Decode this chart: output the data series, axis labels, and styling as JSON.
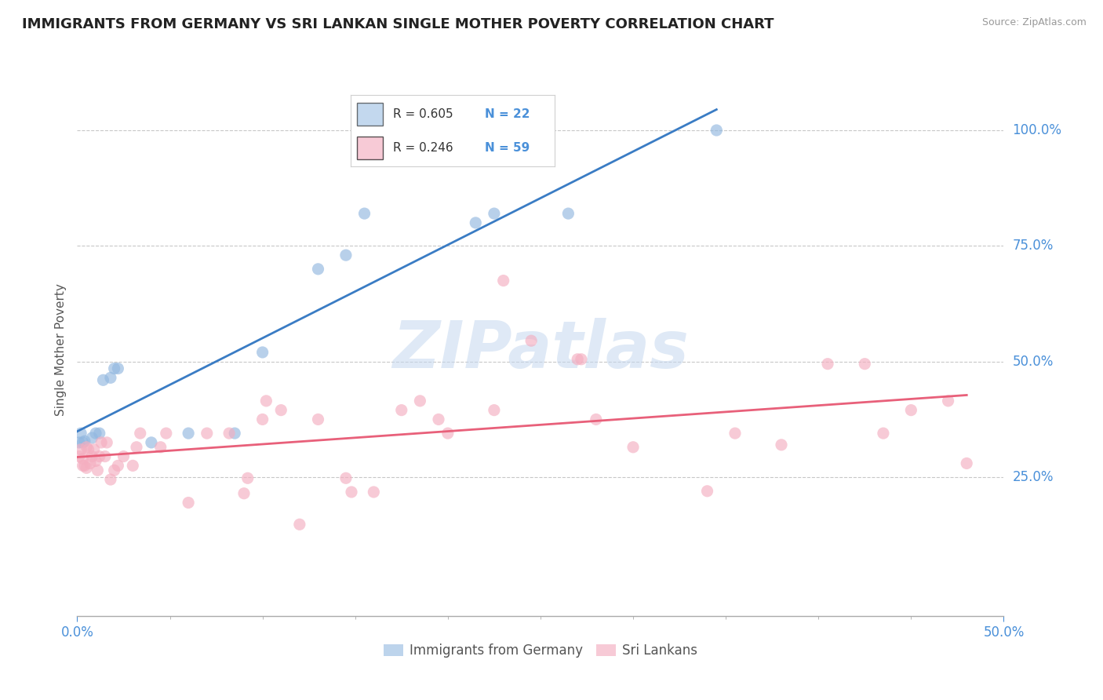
{
  "title": "IMMIGRANTS FROM GERMANY VS SRI LANKAN SINGLE MOTHER POVERTY CORRELATION CHART",
  "source": "Source: ZipAtlas.com",
  "ylabel": "Single Mother Poverty",
  "xlim": [
    0.0,
    0.5
  ],
  "ylim": [
    -0.05,
    1.1
  ],
  "ytick_labels": [
    "25.0%",
    "50.0%",
    "75.0%",
    "100.0%"
  ],
  "ytick_values": [
    0.25,
    0.5,
    0.75,
    1.0
  ],
  "background_color": "#ffffff",
  "title_color": "#222222",
  "watermark_text": "ZIPatlas",
  "legend_R1": "R = 0.605",
  "legend_N1": "N = 22",
  "legend_R2": "R = 0.246",
  "legend_N2": "N = 59",
  "blue_color": "#92b8e0",
  "pink_color": "#f4aec0",
  "blue_line_color": "#3a7cc4",
  "pink_line_color": "#e8607a",
  "scatter_blue": [
    [
      0.001,
      0.325
    ],
    [
      0.002,
      0.345
    ],
    [
      0.003,
      0.325
    ],
    [
      0.004,
      0.328
    ],
    [
      0.008,
      0.335
    ],
    [
      0.01,
      0.345
    ],
    [
      0.012,
      0.345
    ],
    [
      0.014,
      0.46
    ],
    [
      0.018,
      0.465
    ],
    [
      0.02,
      0.485
    ],
    [
      0.022,
      0.485
    ],
    [
      0.04,
      0.325
    ],
    [
      0.06,
      0.345
    ],
    [
      0.085,
      0.345
    ],
    [
      0.1,
      0.52
    ],
    [
      0.13,
      0.7
    ],
    [
      0.145,
      0.73
    ],
    [
      0.155,
      0.82
    ],
    [
      0.215,
      0.8
    ],
    [
      0.225,
      0.82
    ],
    [
      0.265,
      0.82
    ],
    [
      0.345,
      1.0
    ]
  ],
  "scatter_pink": [
    [
      0.001,
      0.295
    ],
    [
      0.002,
      0.31
    ],
    [
      0.003,
      0.275
    ],
    [
      0.003,
      0.29
    ],
    [
      0.004,
      0.275
    ],
    [
      0.005,
      0.315
    ],
    [
      0.005,
      0.27
    ],
    [
      0.006,
      0.31
    ],
    [
      0.007,
      0.28
    ],
    [
      0.008,
      0.295
    ],
    [
      0.009,
      0.31
    ],
    [
      0.01,
      0.285
    ],
    [
      0.011,
      0.265
    ],
    [
      0.012,
      0.295
    ],
    [
      0.013,
      0.325
    ],
    [
      0.015,
      0.295
    ],
    [
      0.016,
      0.325
    ],
    [
      0.018,
      0.245
    ],
    [
      0.02,
      0.265
    ],
    [
      0.022,
      0.275
    ],
    [
      0.025,
      0.295
    ],
    [
      0.03,
      0.275
    ],
    [
      0.032,
      0.315
    ],
    [
      0.034,
      0.345
    ],
    [
      0.045,
      0.315
    ],
    [
      0.048,
      0.345
    ],
    [
      0.06,
      0.195
    ],
    [
      0.07,
      0.345
    ],
    [
      0.082,
      0.345
    ],
    [
      0.09,
      0.215
    ],
    [
      0.092,
      0.248
    ],
    [
      0.1,
      0.375
    ],
    [
      0.102,
      0.415
    ],
    [
      0.11,
      0.395
    ],
    [
      0.12,
      0.148
    ],
    [
      0.13,
      0.375
    ],
    [
      0.145,
      0.248
    ],
    [
      0.148,
      0.218
    ],
    [
      0.16,
      0.218
    ],
    [
      0.175,
      0.395
    ],
    [
      0.185,
      0.415
    ],
    [
      0.195,
      0.375
    ],
    [
      0.2,
      0.345
    ],
    [
      0.225,
      0.395
    ],
    [
      0.23,
      0.675
    ],
    [
      0.245,
      0.545
    ],
    [
      0.27,
      0.505
    ],
    [
      0.272,
      0.505
    ],
    [
      0.28,
      0.375
    ],
    [
      0.3,
      0.315
    ],
    [
      0.34,
      0.22
    ],
    [
      0.355,
      0.345
    ],
    [
      0.38,
      0.32
    ],
    [
      0.405,
      0.495
    ],
    [
      0.425,
      0.495
    ],
    [
      0.435,
      0.345
    ],
    [
      0.45,
      0.395
    ],
    [
      0.47,
      0.415
    ],
    [
      0.48,
      0.28
    ]
  ]
}
